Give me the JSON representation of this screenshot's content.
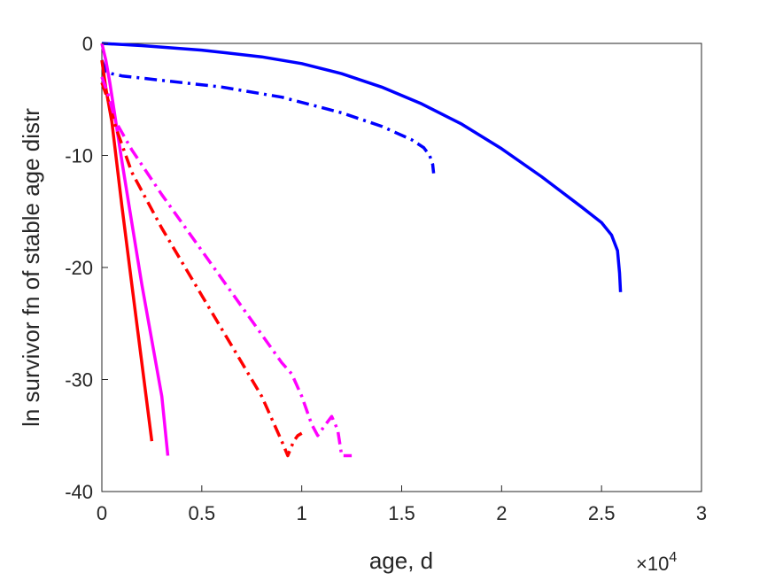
{
  "chart_data": {
    "type": "line",
    "title": "",
    "xlabel": "age, d",
    "ylabel": "ln survivor fn of stable age distr",
    "x_exponent_label": "×10",
    "x_exponent_power": "4",
    "xlim": [
      0,
      30000
    ],
    "ylim": [
      -40,
      0
    ],
    "xticks": [
      0,
      5000,
      10000,
      15000,
      20000,
      25000,
      30000
    ],
    "xtick_labels": [
      "0",
      "0.5",
      "1",
      "1.5",
      "2",
      "2.5",
      "3"
    ],
    "yticks": [
      0,
      -10,
      -20,
      -30,
      -40
    ],
    "ytick_labels": [
      "0",
      "-10",
      "-20",
      "-30",
      "-40"
    ],
    "grid": false,
    "legend": "none",
    "series": [
      {
        "color": "#0000ff",
        "style": "solid",
        "x": [
          0,
          2000,
          5000,
          8000,
          10000,
          12000,
          14000,
          16000,
          18000,
          20000,
          22000,
          24000,
          25000,
          25500,
          25800,
          25900,
          25950
        ],
        "y": [
          0,
          -0.2,
          -0.6,
          -1.2,
          -1.8,
          -2.7,
          -3.9,
          -5.4,
          -7.2,
          -9.4,
          -11.9,
          -14.6,
          -16.0,
          -17.1,
          -18.5,
          -20.5,
          -22.2
        ]
      },
      {
        "color": "#0000ff",
        "style": "dashdot",
        "x": [
          0,
          200,
          500,
          1000,
          3000,
          6000,
          9000,
          12000,
          14000,
          15500,
          16100,
          16400,
          16550,
          16600
        ],
        "y": [
          -1.5,
          -2.5,
          -2.7,
          -2.9,
          -3.3,
          -3.9,
          -4.8,
          -6.2,
          -7.4,
          -8.6,
          -9.3,
          -10.0,
          -10.8,
          -11.6
        ]
      },
      {
        "color": "#ff0000",
        "style": "solid",
        "x": [
          0,
          200,
          500,
          1000,
          1500,
          2000,
          2500
        ],
        "y": [
          -1.5,
          -4.0,
          -7.0,
          -14.5,
          -21.5,
          -28.5,
          -35.5
        ]
      },
      {
        "color": "#ff00ff",
        "style": "solid",
        "x": [
          0,
          200,
          400,
          700,
          1000,
          1500,
          2000,
          2500,
          3000,
          3300
        ],
        "y": [
          0,
          -1.5,
          -3.5,
          -7.0,
          -10.5,
          -16.0,
          -21.5,
          -26.5,
          -31.5,
          -36.8
        ]
      },
      {
        "color": "#ff0000",
        "style": "dashdot",
        "x": [
          0,
          300,
          700,
          1500,
          3000,
          5000,
          7000,
          8000,
          8500,
          9000,
          9300,
          9600,
          9800,
          10000
        ],
        "y": [
          -3.5,
          -5.0,
          -7.5,
          -11.5,
          -16.5,
          -22.5,
          -28.5,
          -31.5,
          -33.5,
          -35.5,
          -36.8,
          -35.5,
          -35.0,
          -34.8
        ]
      },
      {
        "color": "#ff00ff",
        "style": "dashdot",
        "x": [
          0,
          300,
          700,
          1500,
          3000,
          5000,
          7000,
          9000,
          9500,
          10000,
          10500,
          10800,
          11200,
          11500,
          11800,
          12000,
          12200,
          12500
        ],
        "y": [
          -3.0,
          -4.5,
          -7.0,
          -9.5,
          -13.5,
          -18.5,
          -23.5,
          -28.5,
          -29.5,
          -31.5,
          -34.0,
          -35.0,
          -34.0,
          -33.3,
          -34.5,
          -36.8,
          -36.8,
          -36.8
        ]
      }
    ]
  }
}
